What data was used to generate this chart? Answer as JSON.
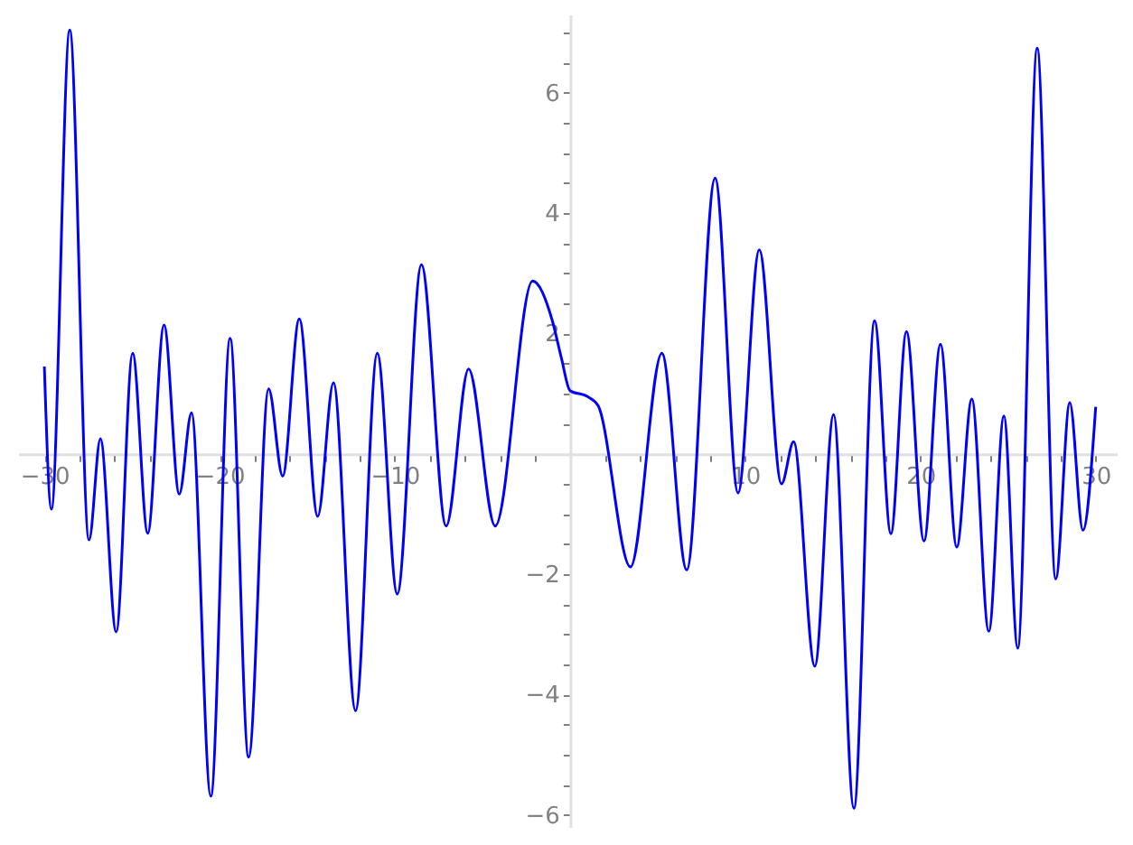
{
  "chart_data": {
    "type": "line",
    "xlim": [
      -31.5,
      31.2
    ],
    "ylim": [
      -6.2,
      7.3
    ],
    "grid": false,
    "marker": "none",
    "line_style": "solid",
    "xticks": [
      {
        "value": -30,
        "label": "−30"
      },
      {
        "value": -28,
        "label": null
      },
      {
        "value": -26,
        "label": null
      },
      {
        "value": -24,
        "label": null
      },
      {
        "value": -22,
        "label": null
      },
      {
        "value": -20,
        "label": "−20"
      },
      {
        "value": -18,
        "label": null
      },
      {
        "value": -16,
        "label": null
      },
      {
        "value": -14,
        "label": null
      },
      {
        "value": -12,
        "label": null
      },
      {
        "value": -10,
        "label": "−10"
      },
      {
        "value": -8,
        "label": null
      },
      {
        "value": -6,
        "label": null
      },
      {
        "value": -4,
        "label": null
      },
      {
        "value": -2,
        "label": null
      },
      {
        "value": 2,
        "label": null
      },
      {
        "value": 4,
        "label": null
      },
      {
        "value": 6,
        "label": null
      },
      {
        "value": 8,
        "label": null
      },
      10,
      {
        "value": 12,
        "label": null
      },
      {
        "value": 14,
        "label": null
      },
      {
        "value": 16,
        "label": null
      },
      {
        "value": 18,
        "label": null
      },
      20,
      {
        "value": 22,
        "label": null
      },
      {
        "value": 24,
        "label": null
      },
      {
        "value": 26,
        "label": null
      },
      {
        "value": 28,
        "label": null
      },
      30
    ],
    "yticks": [
      {
        "value": -6,
        "label": "−6"
      },
      {
        "value": -5.5,
        "label": null
      },
      {
        "value": -5,
        "label": null
      },
      {
        "value": -4.5,
        "label": null
      },
      {
        "value": -4,
        "label": "−4"
      },
      {
        "value": -3.5,
        "label": null
      },
      {
        "value": -3,
        "label": null
      },
      {
        "value": -2.5,
        "label": null
      },
      {
        "value": -2,
        "label": "−2"
      },
      {
        "value": -1.5,
        "label": null
      },
      {
        "value": -1,
        "label": null
      },
      {
        "value": -0.5,
        "label": null
      },
      {
        "value": 0.5,
        "label": null
      },
      {
        "value": 1,
        "label": null
      },
      {
        "value": 1.5,
        "label": null
      },
      2,
      {
        "value": 2.5,
        "label": null
      },
      {
        "value": 3,
        "label": null
      },
      {
        "value": 3.5,
        "label": null
      },
      4,
      {
        "value": 4.5,
        "label": null
      },
      {
        "value": 5,
        "label": null
      },
      {
        "value": 5.5,
        "label": null
      },
      6,
      {
        "value": 6.5,
        "label": null
      },
      {
        "value": 7,
        "label": null
      }
    ],
    "series": [
      {
        "color": "#0000ff",
        "x": [
          -30,
          -29.6,
          -28.55,
          -27.45,
          -26.8,
          -25.9,
          -24.96,
          -24.1,
          -23.17,
          -22.3,
          -21.6,
          -20.5,
          -19.4,
          -18.34,
          -17.2,
          -16.4,
          -15.45,
          -14.4,
          -13.5,
          -12.24,
          -11.0,
          -9.86,
          -8.48,
          -7.07,
          -5.79,
          -4.27,
          -2.14,
          -1,
          -0.5,
          0,
          1,
          1.6,
          3.45,
          5.24,
          6.66,
          8.28,
          9.59,
          10.8,
          12.07,
          12.76,
          13.97,
          15.04,
          16.2,
          17.38,
          18.31,
          19.2,
          20.2,
          21.14,
          22.07,
          22.93,
          23.9,
          24.76,
          25.55,
          26.66,
          27.72,
          28.52,
          29.27,
          30
        ],
        "values": [
          1.45,
          -0.92,
          7.04,
          -1.43,
          0.25,
          -2.96,
          1.67,
          -1.32,
          2.14,
          -0.67,
          0.68,
          -5.69,
          1.92,
          -5.04,
          1.08,
          -0.37,
          2.24,
          -1.04,
          1.18,
          -4.27,
          1.67,
          -2.33,
          3.14,
          -1.2,
          1.41,
          -1.2,
          2.87,
          2.2,
          1.6,
          1.05,
          0.95,
          0.8,
          -1.88,
          1.67,
          -1.93,
          4.58,
          -0.65,
          3.39,
          -0.5,
          0.2,
          -3.53,
          0.65,
          -5.89,
          2.21,
          -1.33,
          2.03,
          -1.45,
          1.82,
          -1.55,
          0.91,
          -2.95,
          0.63,
          -3.23,
          6.74,
          -2.08,
          0.85,
          -1.27,
          0.78
        ]
      }
    ]
  }
}
